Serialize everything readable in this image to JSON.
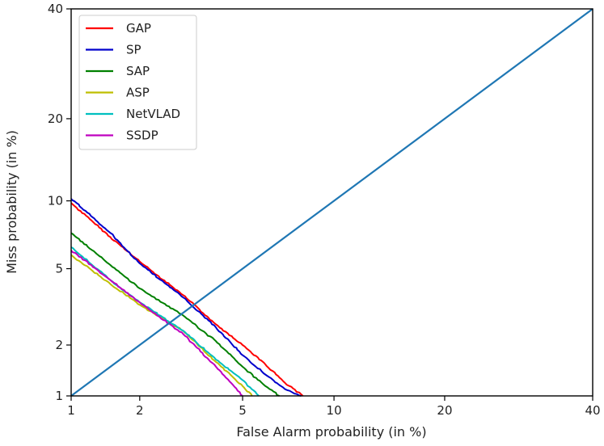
{
  "chart_data": {
    "type": "line",
    "title": "",
    "xlabel": "False Alarm probability (in %)",
    "ylabel": "Miss probability (in %)",
    "xscale": "probit",
    "yscale": "probit",
    "xlim": [
      1,
      40
    ],
    "ylim": [
      1,
      40
    ],
    "xticks": [
      1,
      2,
      5,
      10,
      20,
      40
    ],
    "yticks": [
      1,
      2,
      5,
      10,
      20,
      40
    ],
    "xtick_labels": [
      "1",
      "2",
      "5",
      "10",
      "20",
      "40"
    ],
    "ytick_labels": [
      "1",
      "2",
      "5",
      "10",
      "20",
      "40"
    ],
    "grid": false,
    "legend_position": "top-left",
    "series": [
      {
        "name": "GAP",
        "color": "#ff0000",
        "x": [
          1.0,
          1.5,
          2.0,
          3.0,
          4.0,
          5.0,
          6.0,
          7.0,
          8.0
        ],
        "y": [
          9.8,
          7.0,
          5.4,
          3.7,
          2.6,
          2.0,
          1.55,
          1.2,
          1.0
        ]
      },
      {
        "name": "SP",
        "color": "#0000cc",
        "x": [
          1.0,
          1.5,
          2.0,
          3.0,
          4.0,
          5.0,
          6.0,
          7.0,
          7.9
        ],
        "y": [
          10.2,
          7.3,
          5.3,
          3.6,
          2.5,
          1.75,
          1.35,
          1.1,
          1.0
        ]
      },
      {
        "name": "SAP",
        "color": "#008000",
        "x": [
          1.0,
          1.5,
          2.0,
          3.0,
          4.0,
          5.0,
          6.0,
          6.7
        ],
        "y": [
          7.3,
          5.2,
          4.0,
          2.9,
          2.1,
          1.5,
          1.15,
          1.0
        ]
      },
      {
        "name": "ASP",
        "color": "#bfbf00",
        "x": [
          1.0,
          1.5,
          2.0,
          3.0,
          4.0,
          5.0,
          5.4
        ],
        "y": [
          5.8,
          4.2,
          3.3,
          2.4,
          1.6,
          1.15,
          1.0
        ]
      },
      {
        "name": "NetVLAD",
        "color": "#00bfbf",
        "x": [
          1.0,
          1.5,
          2.0,
          3.0,
          4.0,
          5.0,
          5.7
        ],
        "y": [
          6.3,
          4.4,
          3.4,
          2.4,
          1.65,
          1.25,
          1.0
        ]
      },
      {
        "name": "SSDP",
        "color": "#bf00bf",
        "x": [
          1.0,
          1.5,
          2.0,
          3.0,
          4.0,
          5.0
        ],
        "y": [
          6.1,
          4.4,
          3.4,
          2.3,
          1.5,
          1.0
        ]
      },
      {
        "name": "",
        "color": "#1f77b4",
        "x": [
          1,
          40
        ],
        "y": [
          1,
          40
        ]
      }
    ]
  }
}
